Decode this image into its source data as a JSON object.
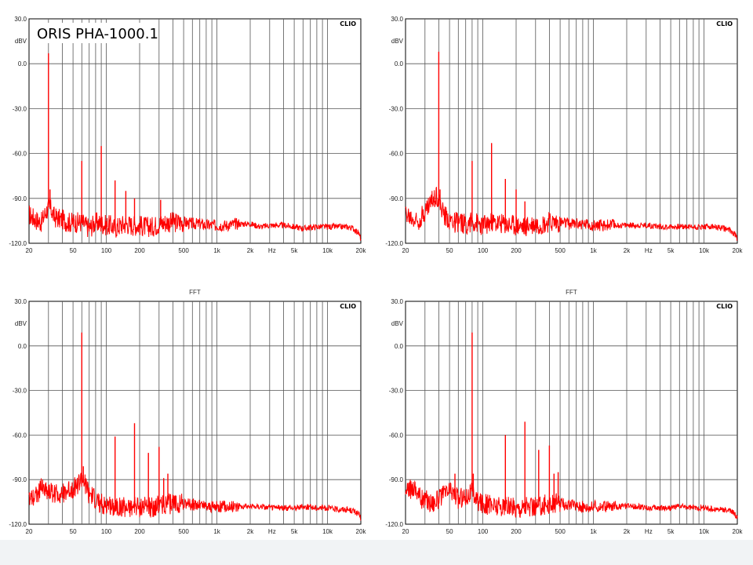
{
  "page": {
    "overlay_label": "ORIS PHA-1000.1"
  },
  "style": {
    "trace_color": "#ff0000",
    "grid_color": "#000000",
    "background": "#ffffff"
  },
  "chart_data": [
    {
      "type": "line",
      "title": "",
      "brand": "CLIO",
      "xscale": "log",
      "xlim": [
        20,
        20000
      ],
      "ylim": [
        -120,
        30
      ],
      "yunit": "dBV",
      "yticks": [
        "30.0",
        "0.0",
        "-30.0",
        "-60.0",
        "-90.0",
        "-120.0"
      ],
      "xticks": [
        "20",
        "50",
        "100",
        "200",
        "500",
        "1k",
        "2k",
        "Hz",
        "5k",
        "10k",
        "20k"
      ],
      "grid": true,
      "series": [
        {
          "x": [
            20,
            22,
            24,
            26,
            28,
            30,
            32,
            34,
            36,
            38,
            40,
            45,
            50,
            55,
            60,
            70,
            80,
            90,
            100,
            110,
            120,
            135,
            150,
            170,
            200,
            230,
            260,
            300,
            350,
            400,
            450,
            500,
            600,
            700,
            800,
            1000,
            1200,
            1500,
            2000,
            2500,
            3000,
            4000,
            5000,
            6000,
            8000,
            10000,
            12000,
            15000,
            17000,
            19000,
            20000
          ],
          "y": [
            -101,
            -103,
            -105,
            -106,
            -100,
            -96,
            -98,
            -103,
            -103,
            -104,
            -104,
            -106,
            -106,
            -106,
            -106,
            -110,
            -106,
            -107,
            -108,
            -108,
            -110,
            -108,
            -107,
            -108,
            -108,
            -109,
            -109,
            -107,
            -106,
            -106,
            -106,
            -106,
            -107,
            -107,
            -108,
            -108,
            -108,
            -107,
            -107,
            -109,
            -108,
            -108,
            -109,
            -110,
            -109,
            -109,
            -109,
            -109,
            -110,
            -113,
            -117
          ]
        }
      ],
      "spikes": [
        [
          30,
          7
        ],
        [
          31,
          -84
        ],
        [
          60,
          -65
        ],
        [
          90,
          -55
        ],
        [
          120,
          -78
        ],
        [
          150,
          -85
        ],
        [
          180,
          -90
        ],
        [
          310,
          -91
        ]
      ]
    },
    {
      "type": "line",
      "title": "",
      "brand": "CLIO",
      "xscale": "log",
      "xlim": [
        20,
        20000
      ],
      "ylim": [
        -120,
        30
      ],
      "yunit": "dBV",
      "yticks": [
        "30.0",
        "0.0",
        "-30.0",
        "-60.0",
        "-90.0",
        "-120.0"
      ],
      "xticks": [
        "20",
        "50",
        "100",
        "200",
        "500",
        "1k",
        "2k",
        "Hz",
        "5k",
        "10k",
        "20k"
      ],
      "grid": true,
      "series": [
        {
          "x": [
            20,
            22,
            24,
            26,
            28,
            30,
            32,
            34,
            36,
            38,
            40,
            45,
            50,
            55,
            60,
            70,
            80,
            90,
            100,
            110,
            120,
            135,
            150,
            170,
            200,
            230,
            260,
            300,
            350,
            400,
            450,
            500,
            600,
            700,
            800,
            1000,
            1200,
            1500,
            2000,
            2500,
            3000,
            4000,
            5000,
            6000,
            8000,
            10000,
            12000,
            15000,
            17000,
            19000,
            20000
          ],
          "y": [
            -100,
            -103,
            -104,
            -105,
            -101,
            -99,
            -95,
            -92,
            -90,
            -87,
            -92,
            -102,
            -104,
            -106,
            -106,
            -107,
            -106,
            -107,
            -108,
            -107,
            -106,
            -107,
            -107,
            -108,
            -108,
            -109,
            -108,
            -107,
            -107,
            -106,
            -106,
            -106,
            -107,
            -107,
            -107,
            -108,
            -108,
            -108,
            -108,
            -108,
            -108,
            -109,
            -109,
            -109,
            -109,
            -109,
            -109,
            -110,
            -111,
            -114,
            -117
          ]
        }
      ],
      "spikes": [
        [
          40,
          8
        ],
        [
          41,
          -84
        ],
        [
          80,
          -65
        ],
        [
          120,
          -53
        ],
        [
          160,
          -77
        ],
        [
          200,
          -84
        ],
        [
          240,
          -92
        ]
      ]
    },
    {
      "type": "line",
      "title": "FFT",
      "brand": "CLIO",
      "xscale": "log",
      "xlim": [
        20,
        20000
      ],
      "ylim": [
        -120,
        30
      ],
      "yunit": "dBV",
      "yticks": [
        "30.0",
        "0.0",
        "-30.0",
        "-60.0",
        "-90.0",
        "-120.0"
      ],
      "xticks": [
        "20",
        "50",
        "100",
        "200",
        "500",
        "1k",
        "2k",
        "Hz",
        "5k",
        "10k",
        "20k"
      ],
      "grid": true,
      "series": [
        {
          "x": [
            20,
            22,
            24,
            26,
            28,
            30,
            35,
            40,
            45,
            50,
            55,
            60,
            65,
            70,
            80,
            90,
            100,
            110,
            120,
            135,
            150,
            170,
            200,
            230,
            260,
            300,
            350,
            400,
            450,
            500,
            600,
            700,
            800,
            1000,
            1200,
            1500,
            2000,
            2500,
            3000,
            4000,
            5000,
            6000,
            8000,
            10000,
            12000,
            15000,
            17000,
            19000,
            20000
          ],
          "y": [
            -102,
            -101,
            -99,
            -95,
            -97,
            -98,
            -100,
            -99,
            -98,
            -96,
            -94,
            -90,
            -93,
            -100,
            -104,
            -106,
            -107,
            -108,
            -108,
            -108,
            -109,
            -108,
            -109,
            -108,
            -109,
            -107,
            -107,
            -106,
            -106,
            -106,
            -107,
            -107,
            -108,
            -108,
            -108,
            -108,
            -108,
            -108,
            -109,
            -109,
            -109,
            -108,
            -109,
            -109,
            -110,
            -110,
            -111,
            -113,
            -116
          ]
        }
      ],
      "spikes": [
        [
          60,
          9
        ],
        [
          62,
          -81
        ],
        [
          120,
          -61
        ],
        [
          180,
          -52
        ],
        [
          240,
          -72
        ],
        [
          300,
          -68
        ],
        [
          330,
          -89
        ],
        [
          360,
          -86
        ]
      ]
    },
    {
      "type": "line",
      "title": "FFT",
      "brand": "CLIO",
      "xscale": "log",
      "xlim": [
        20,
        20000
      ],
      "ylim": [
        -120,
        30
      ],
      "yunit": "dBV",
      "yticks": [
        "30.0",
        "0.0",
        "-30.0",
        "-60.0",
        "-90.0",
        "-120.0"
      ],
      "xticks": [
        "20",
        "50",
        "100",
        "200",
        "500",
        "1k",
        "2k",
        "Hz",
        "5k",
        "10k",
        "20k"
      ],
      "grid": true,
      "series": [
        {
          "x": [
            20,
            22,
            24,
            26,
            28,
            30,
            35,
            40,
            45,
            50,
            55,
            60,
            65,
            70,
            80,
            90,
            100,
            110,
            120,
            135,
            150,
            170,
            200,
            230,
            260,
            300,
            350,
            400,
            450,
            500,
            600,
            700,
            800,
            1000,
            1200,
            1500,
            2000,
            2500,
            3000,
            4000,
            5000,
            6000,
            8000,
            10000,
            12000,
            15000,
            17000,
            19000,
            20000
          ],
          "y": [
            -100,
            -97,
            -94,
            -99,
            -103,
            -104,
            -105,
            -103,
            -100,
            -97,
            -99,
            -103,
            -102,
            -101,
            -98,
            -104,
            -106,
            -107,
            -107,
            -108,
            -108,
            -108,
            -109,
            -108,
            -109,
            -108,
            -107,
            -107,
            -106,
            -106,
            -107,
            -107,
            -108,
            -108,
            -108,
            -108,
            -108,
            -108,
            -109,
            -109,
            -109,
            -108,
            -109,
            -109,
            -110,
            -110,
            -111,
            -113,
            -116
          ]
        }
      ],
      "spikes": [
        [
          80,
          9
        ],
        [
          82,
          -86
        ],
        [
          160,
          -60
        ],
        [
          240,
          -51
        ],
        [
          320,
          -70
        ],
        [
          400,
          -67
        ],
        [
          440,
          -86
        ],
        [
          480,
          -85
        ],
        [
          56,
          -86
        ]
      ]
    }
  ]
}
